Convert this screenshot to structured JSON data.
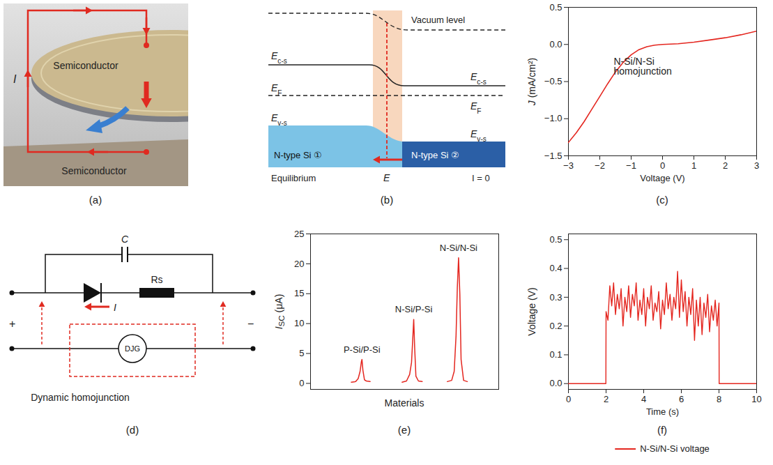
{
  "chart_data": [
    {
      "type": "line",
      "panel": "(c)",
      "x_label": "Voltage (V)",
      "y_label": {
        "text": "J",
        "after": " (mA/cm²)"
      },
      "annotation": [
        "N-Si/N-Si",
        "homojunction"
      ],
      "color": "#e4261f",
      "x": [
        -3,
        -2.75,
        -2.5,
        -2.25,
        -2,
        -1.75,
        -1.5,
        -1.25,
        -1,
        -0.75,
        -0.5,
        -0.25,
        0,
        0.5,
        1,
        1.5,
        2,
        2.5,
        3
      ],
      "values": [
        -1.32,
        -1.19,
        -1.04,
        -0.87,
        -0.7,
        -0.53,
        -0.37,
        -0.24,
        -0.14,
        -0.07,
        -0.03,
        -0.01,
        0,
        0.01,
        0.03,
        0.06,
        0.09,
        0.13,
        0.18
      ],
      "xlim": [
        -3,
        3
      ],
      "xticks": [
        {
          "value": -3,
          "label": "−3"
        },
        {
          "value": -2,
          "label": "−2"
        },
        {
          "value": -1,
          "label": "−1"
        },
        0,
        1,
        2,
        3
      ],
      "ylim": [
        -1.5,
        0.5
      ],
      "yticks": [
        {
          "value": -1.5,
          "label": "−1.5"
        },
        {
          "value": -1,
          "label": "−1.0"
        },
        {
          "value": -0.5,
          "label": "−0.5"
        },
        {
          "value": 0,
          "label": "0.0"
        },
        0.5
      ]
    },
    {
      "type": "line",
      "panel": "(e)",
      "x_label": "Materials",
      "y_label": {
        "text": "I",
        "sub": "SC",
        "after": " (μA)"
      },
      "color": "#e4261f",
      "tick_labels": "y",
      "xlim": [
        0,
        30
      ],
      "ylim": [
        -1,
        25
      ],
      "yticks": [
        0,
        5,
        10,
        15,
        20,
        25
      ],
      "series": [
        {
          "name": "P-Si/P-Si",
          "x": [
            6.5,
            7.2,
            7.6,
            7.9,
            8.1,
            8.2,
            8.35,
            8.6,
            8.9,
            9.5
          ],
          "values": [
            0.2,
            0.3,
            0.8,
            2.0,
            3.6,
            4.0,
            2.2,
            0.6,
            0.4,
            0.3
          ]
        },
        {
          "name": "N-Si/P-Si",
          "x": [
            14.6,
            15.3,
            15.8,
            16.1,
            16.3,
            16.45,
            16.6,
            16.8,
            17.2,
            17.8
          ],
          "values": [
            0.2,
            0.4,
            1.5,
            3.5,
            7.5,
            10.7,
            6,
            1.2,
            0.4,
            0.3
          ]
        },
        {
          "name": "N-Si/N-Si",
          "x": [
            21.8,
            22.5,
            22.9,
            23.2,
            23.4,
            23.6,
            23.8,
            24.0,
            24.4,
            25.0
          ],
          "values": [
            0.3,
            0.5,
            2.0,
            8,
            16,
            21,
            15,
            4,
            0.5,
            0.3
          ]
        }
      ]
    },
    {
      "type": "line",
      "panel": "(f)",
      "x_label": "Time (s)",
      "y_label": "Voltage (V)",
      "legend": "bottom",
      "xlim": [
        0,
        10
      ],
      "xticks": [
        0,
        2,
        4,
        6,
        8,
        10
      ],
      "ylim": [
        -0.02,
        0.52
      ],
      "yticks": [
        {
          "value": 0,
          "label": "0.0"
        },
        0.1,
        0.2,
        0.3,
        0.4,
        0.5
      ],
      "series": [
        {
          "name": "N-Si/N-Si voltage",
          "color": "#e4261f",
          "x": [
            0,
            1.99,
            2,
            2.1,
            2.2,
            2.3,
            2.4,
            2.5,
            2.6,
            2.7,
            2.8,
            2.9,
            3,
            3.1,
            3.2,
            3.3,
            3.4,
            3.5,
            3.6,
            3.7,
            3.8,
            3.9,
            4,
            4.1,
            4.2,
            4.3,
            4.4,
            4.5,
            4.6,
            4.7,
            4.8,
            4.9,
            5,
            5.1,
            5.2,
            5.3,
            5.4,
            5.5,
            5.6,
            5.7,
            5.8,
            5.9,
            6,
            6.1,
            6.2,
            6.3,
            6.4,
            6.5,
            6.6,
            6.7,
            6.8,
            6.9,
            7,
            7.1,
            7.2,
            7.3,
            7.4,
            7.5,
            7.6,
            7.7,
            7.8,
            7.9,
            8,
            8.01,
            10
          ],
          "values": [
            0,
            0,
            0.25,
            0.22,
            0.34,
            0.27,
            0.35,
            0.24,
            0.31,
            0.26,
            0.33,
            0.2,
            0.3,
            0.25,
            0.34,
            0.23,
            0.31,
            0.27,
            0.35,
            0.22,
            0.29,
            0.24,
            0.33,
            0.2,
            0.3,
            0.26,
            0.34,
            0.22,
            0.28,
            0.25,
            0.32,
            0.19,
            0.29,
            0.24,
            0.35,
            0.26,
            0.31,
            0.22,
            0.3,
            0.26,
            0.39,
            0.23,
            0.36,
            0.25,
            0.32,
            0.2,
            0.3,
            0.24,
            0.33,
            0.15,
            0.29,
            0.2,
            0.3,
            0.17,
            0.28,
            0.23,
            0.31,
            0.18,
            0.27,
            0.22,
            0.29,
            0.2,
            0.28,
            0,
            0
          ]
        }
      ]
    }
  ],
  "diagrams": {
    "a": {
      "panel": "(a)",
      "labels": [
        "Semiconductor",
        "Semiconductor"
      ],
      "current": "I"
    },
    "b": {
      "panel": "(b)",
      "vacuum": "Vacuum level",
      "conduction": {
        "text": "E",
        "sub": "c-s"
      },
      "fermi": {
        "text": "E",
        "sub": "F"
      },
      "valence": {
        "text": "E",
        "sub": "v-s"
      },
      "left": "N-type Si ①",
      "right": "N-type Si ②",
      "state": "Equilibrium",
      "field": "E",
      "current": "I = 0"
    },
    "d": {
      "panel": "(d)",
      "capacitor": "C",
      "resistor": "Rs",
      "current": "I",
      "plus": "+",
      "minus": "−",
      "source": "DJG",
      "caption": "Dynamic homojunction"
    }
  }
}
